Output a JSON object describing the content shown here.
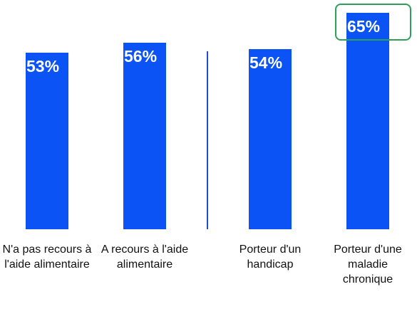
{
  "chart_data": {
    "type": "bar",
    "categories": [
      "N'a pas recours à l'aide alimentaire",
      "A recours à l'aide alimentaire",
      "Porteur d'un handicap",
      "Porteur d'une maladie chronique"
    ],
    "values": [
      53,
      56,
      54,
      65
    ],
    "value_labels": [
      "53%",
      "56%",
      "54%",
      "65%"
    ],
    "color": "#0b53f4",
    "highlight": 3,
    "highlight_color": "#2ca05a"
  }
}
